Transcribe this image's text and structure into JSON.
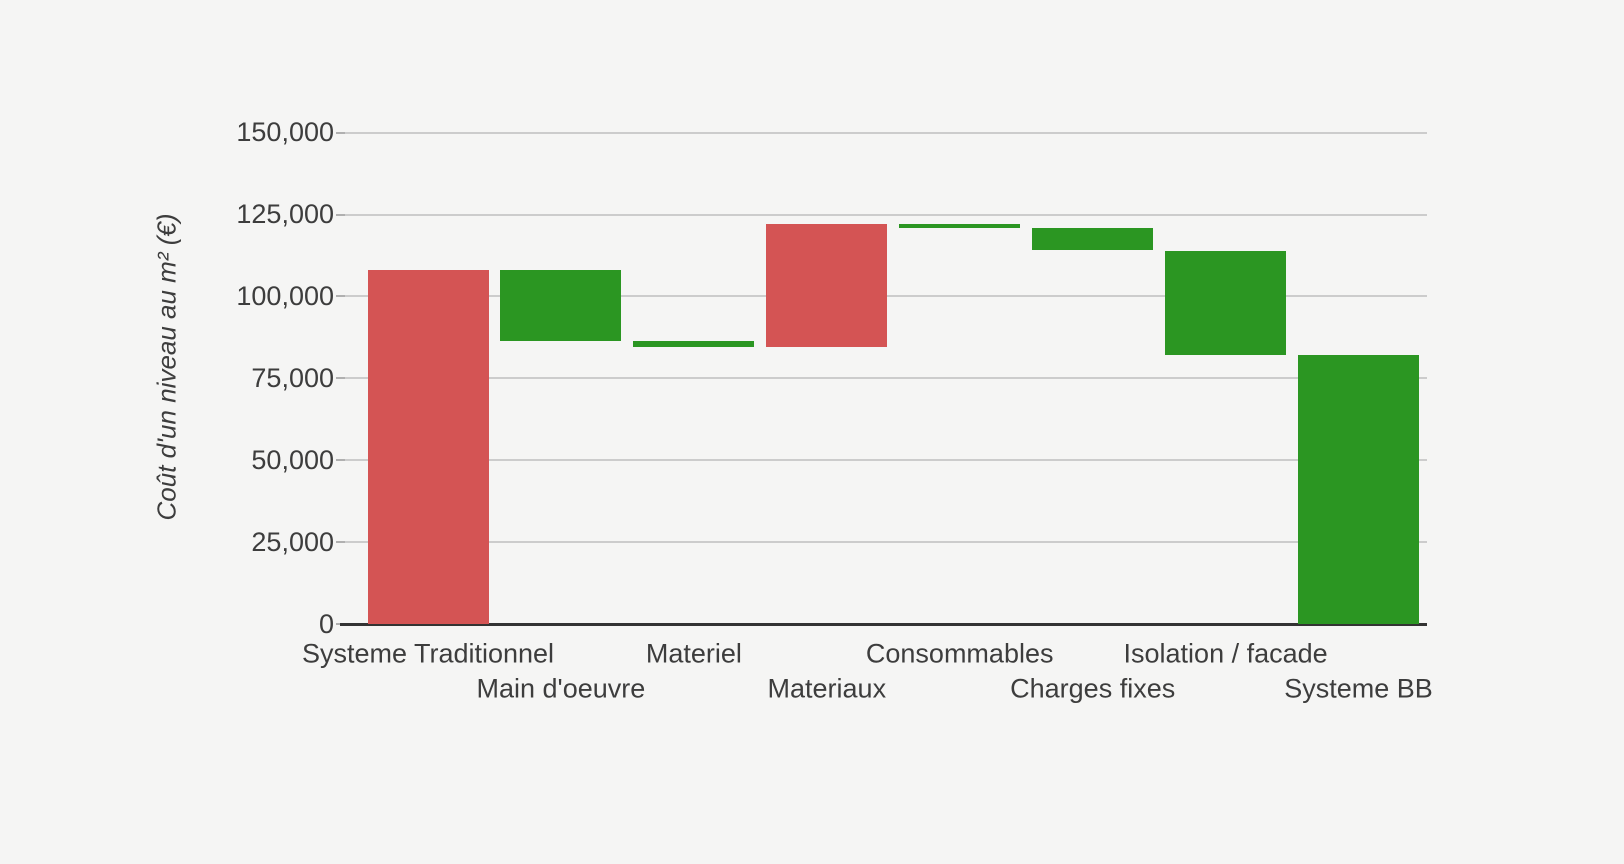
{
  "chart_data": {
    "type": "bar",
    "variant": "waterfall",
    "title": "",
    "xlabel": "",
    "ylabel": "Coût d'un niveau au m² (€)",
    "ylim": [
      0,
      150000
    ],
    "grid": true,
    "legend": "none",
    "y_ticks": [
      {
        "value": 0,
        "label": "0"
      },
      {
        "value": 25000,
        "label": "25,000"
      },
      {
        "value": 50000,
        "label": "50,000"
      },
      {
        "value": 75000,
        "label": "75,000"
      },
      {
        "value": 100000,
        "label": "100,000"
      },
      {
        "value": 125000,
        "label": "125,000"
      },
      {
        "value": 150000,
        "label": "150,000"
      }
    ],
    "categories": [
      "Systeme Traditionnel",
      "Main d'oeuvre",
      "Materiel",
      "Materiaux",
      "Consommables",
      "Charges fixes",
      "Isolation / facade",
      "Systeme BB"
    ],
    "bars": [
      {
        "label": "Systeme Traditionnel",
        "role": "total",
        "start": 0,
        "end": 108000,
        "change": 108000,
        "color": "red"
      },
      {
        "label": "Main d'oeuvre",
        "role": "decrease",
        "start": 108000,
        "end": 86500,
        "change": -21500,
        "color": "green"
      },
      {
        "label": "Materiel",
        "role": "decrease",
        "start": 86500,
        "end": 84500,
        "change": -2000,
        "color": "green"
      },
      {
        "label": "Materiaux",
        "role": "increase",
        "start": 84500,
        "end": 122000,
        "change": 37500,
        "color": "red"
      },
      {
        "label": "Consommables",
        "role": "decrease",
        "start": 122000,
        "end": 121000,
        "change": -1000,
        "color": "green"
      },
      {
        "label": "Charges fixes",
        "role": "decrease",
        "start": 121000,
        "end": 114000,
        "change": -7000,
        "color": "green"
      },
      {
        "label": "Isolation / facade",
        "role": "decrease",
        "start": 114000,
        "end": 82000,
        "change": -32000,
        "color": "green"
      },
      {
        "label": "Systeme BB",
        "role": "total",
        "start": 0,
        "end": 82000,
        "change": 82000,
        "color": "green"
      }
    ],
    "colors": {
      "red": "#d45454",
      "green": "#2b9622",
      "gridline": "#cccccc",
      "tickmark": "#b0b0b0",
      "baseline": "#333333",
      "axis_text": "#3d3d3d",
      "background": "#f5f5f4"
    }
  }
}
